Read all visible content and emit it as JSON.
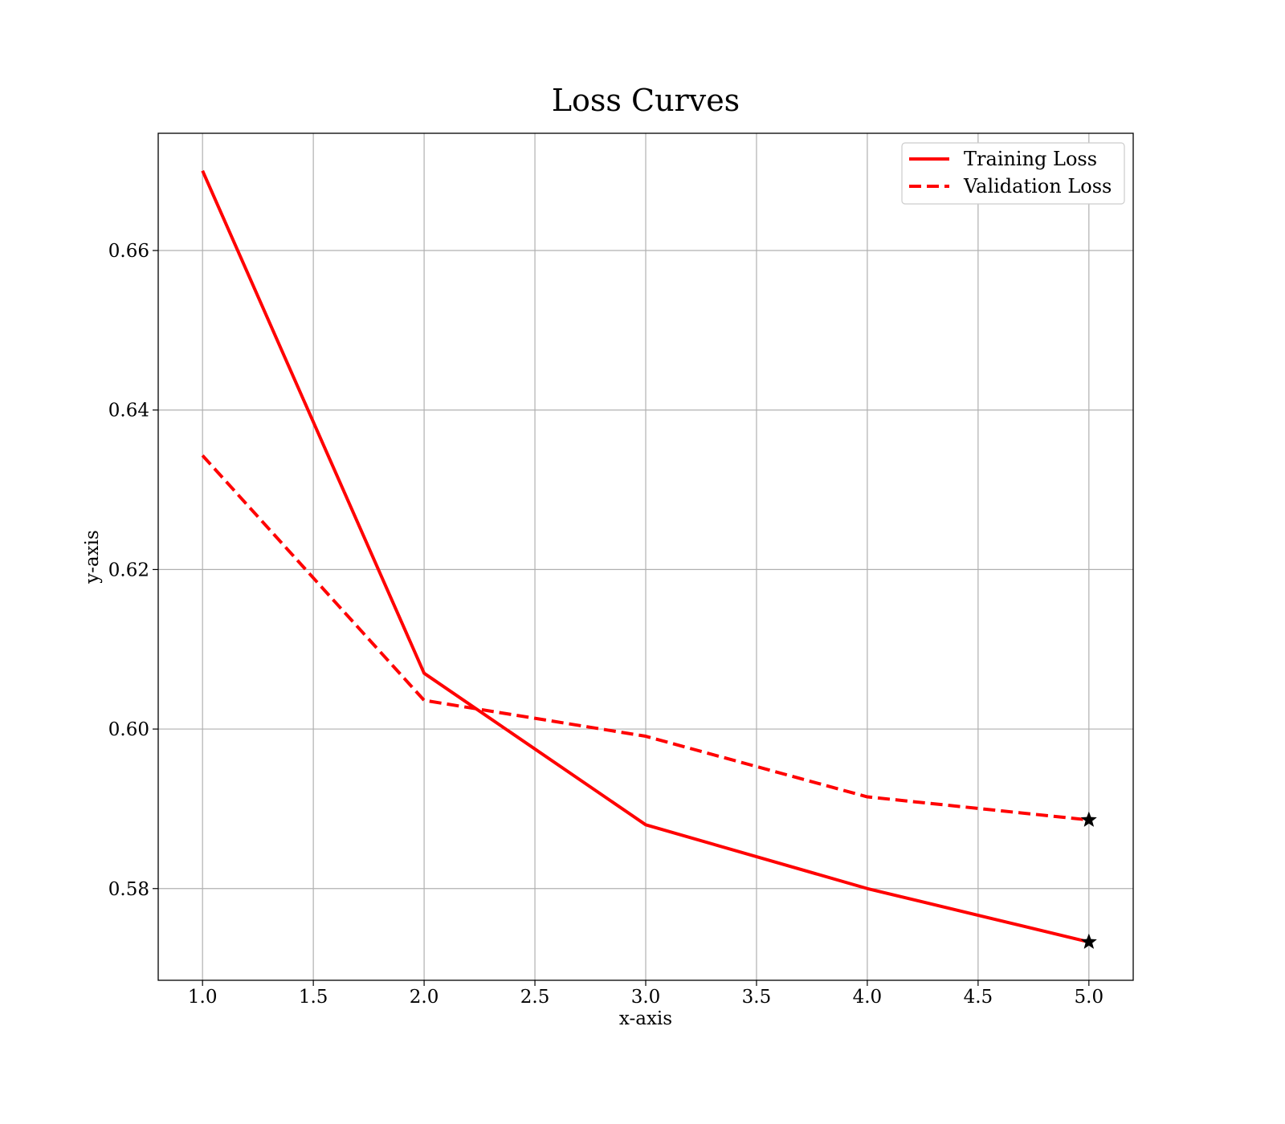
{
  "chart_data": {
    "type": "line",
    "title": "Loss Curves",
    "xlabel": "x-axis",
    "ylabel": "y-axis",
    "x": [
      1,
      2,
      3,
      4,
      5
    ],
    "xlim": [
      0.8,
      5.2
    ],
    "ylim": [
      0.5685,
      0.6747
    ],
    "xticks": [
      1.0,
      1.5,
      2.0,
      2.5,
      3.0,
      3.5,
      4.0,
      4.5,
      5.0
    ],
    "xtick_labels": [
      "1.0",
      "1.5",
      "2.0",
      "2.5",
      "3.0",
      "3.5",
      "4.0",
      "4.5",
      "5.0"
    ],
    "yticks": [
      0.58,
      0.6,
      0.62,
      0.64,
      0.66
    ],
    "ytick_labels": [
      "0.58",
      "0.60",
      "0.62",
      "0.64",
      "0.66"
    ],
    "grid": true,
    "legend_position": "top-right",
    "series": [
      {
        "name": "Training Loss",
        "values": [
          0.67,
          0.607,
          0.588,
          0.58,
          0.5733
        ],
        "color": "#ff0000",
        "style": "solid",
        "end_marker": "star"
      },
      {
        "name": "Validation Loss",
        "values": [
          0.6343,
          0.6036,
          0.5991,
          0.5915,
          0.5886
        ],
        "color": "#ff0000",
        "style": "dashed",
        "end_marker": "star"
      }
    ]
  }
}
